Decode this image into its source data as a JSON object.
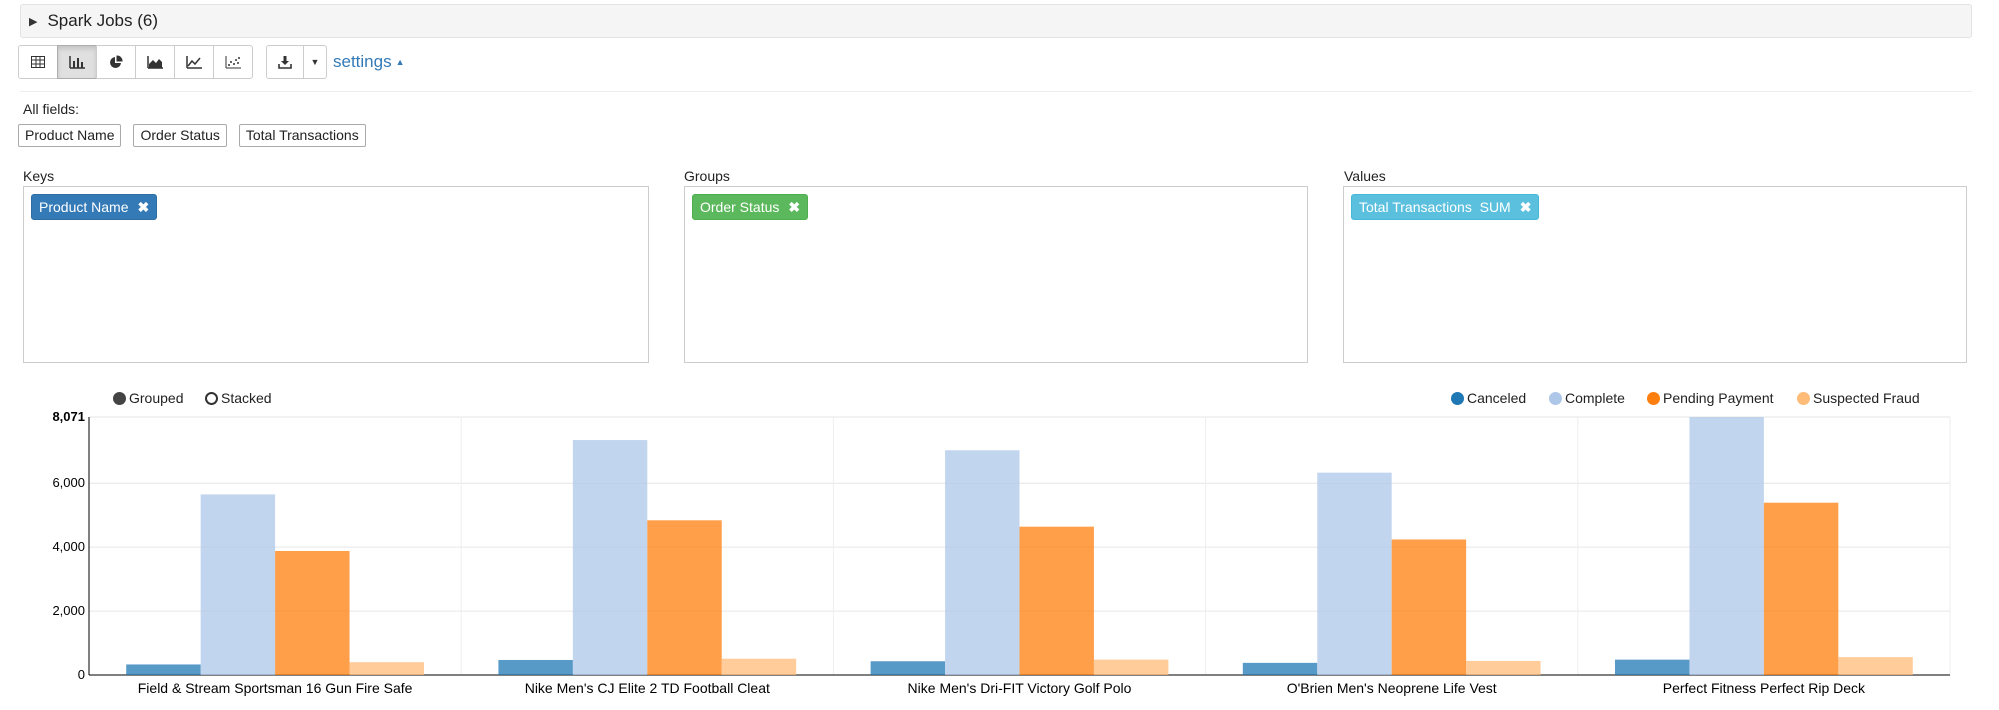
{
  "spark_jobs": {
    "label": "Spark Jobs (6)"
  },
  "toolbar": {
    "chart_buttons": [
      {
        "icon": "table-icon"
      },
      {
        "icon": "bar-chart-icon",
        "active": true
      },
      {
        "icon": "pie-chart-icon"
      },
      {
        "icon": "area-chart-icon"
      },
      {
        "icon": "line-chart-icon"
      },
      {
        "icon": "scatter-chart-icon"
      }
    ],
    "download_icon": "download-icon",
    "settings_label": "settings"
  },
  "all_fields": {
    "label": "All fields:",
    "fields": [
      "Product Name",
      "Order Status",
      "Total Transactions"
    ]
  },
  "keys": {
    "label": "Keys",
    "tag": "Product Name",
    "color": "#337ab7"
  },
  "groups": {
    "label": "Groups",
    "tag": "Order Status",
    "color": "#5cb85c"
  },
  "values": {
    "label": "Values",
    "tag": "Total Transactions  SUM",
    "color": "#5bc0de"
  },
  "mode": {
    "grouped_label": "Grouped",
    "stacked_label": "Stacked",
    "selected": "Grouped"
  },
  "chart_data": {
    "type": "bar",
    "categories": [
      "Field & Stream Sportsman 16 Gun Fire Safe",
      "Nike Men's CJ Elite 2 TD Football Cleat",
      "Nike Men's Dri-FIT Victory Golf Polo",
      "O'Brien Men's Neoprene Life Vest",
      "Perfect Fitness Perfect Rip Deck"
    ],
    "series": [
      {
        "name": "Canceled",
        "color": "#1f77b4",
        "values": [
          330,
          470,
          430,
          380,
          480
        ]
      },
      {
        "name": "Complete",
        "color": "#aec7e8",
        "values": [
          5650,
          7350,
          7030,
          6330,
          8071
        ]
      },
      {
        "name": "Pending Payment",
        "color": "#ff7f0e",
        "values": [
          3880,
          4840,
          4640,
          4240,
          5390
        ]
      },
      {
        "name": "Suspected Fraud",
        "color": "#ffbb78",
        "values": [
          400,
          510,
          480,
          440,
          560
        ]
      }
    ],
    "ylim": [
      0,
      8071
    ],
    "y_ticks": [
      "0",
      "2,000",
      "4,000",
      "6,000",
      "8,071"
    ],
    "y_tick_values": [
      0,
      2000,
      4000,
      6000,
      8071
    ],
    "legend_position": "top-right",
    "grid": true
  }
}
